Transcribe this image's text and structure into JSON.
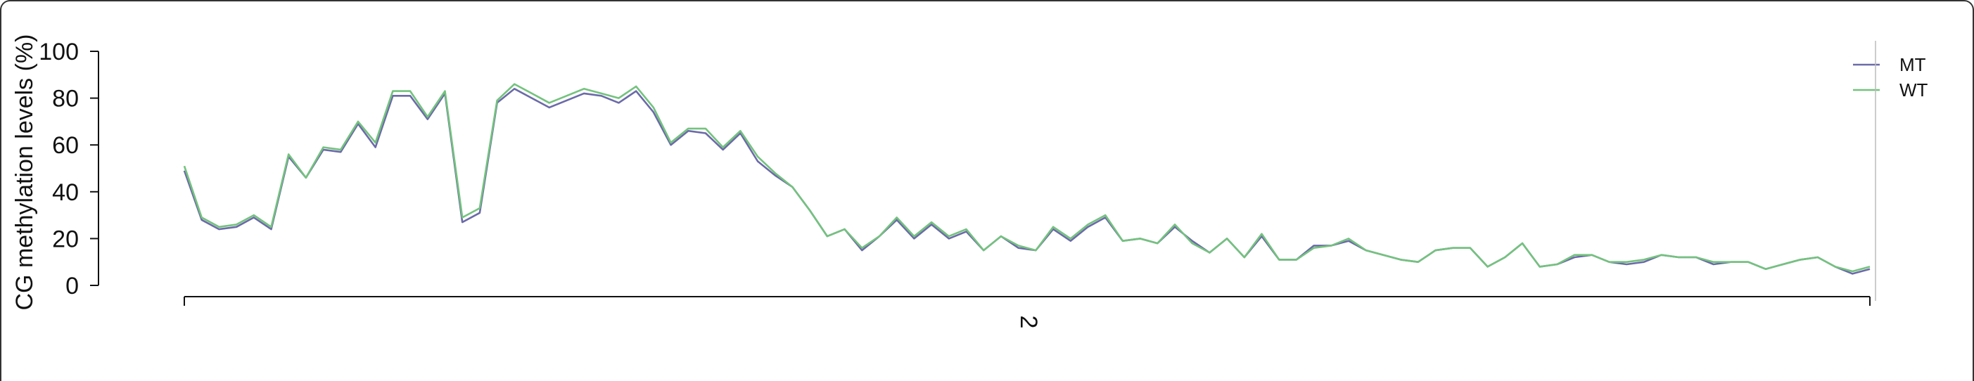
{
  "chart_data": {
    "type": "line",
    "ylabel": "CG methylation levels (%)",
    "xlabel": "",
    "x_tick_labels": [
      "2"
    ],
    "ylim": [
      0,
      100
    ],
    "yticks": [
      0,
      20,
      40,
      60,
      80,
      100
    ],
    "grid": false,
    "legend_position": "top-right",
    "series": [
      {
        "name": "MT",
        "color": "#6b6aa8",
        "values": [
          49,
          28,
          24,
          25,
          29,
          24,
          55,
          46,
          58,
          57,
          69,
          59,
          81,
          81,
          71,
          82,
          27,
          31,
          78,
          84,
          80,
          76,
          79,
          82,
          81,
          78,
          83,
          74,
          60,
          66,
          65,
          58,
          65,
          53,
          47,
          42,
          32,
          21,
          24,
          15,
          21,
          28,
          20,
          26,
          20,
          23,
          15,
          21,
          16,
          15,
          24,
          19,
          25,
          29,
          19,
          20,
          18,
          25,
          19,
          14,
          20,
          12,
          21,
          11,
          11,
          17,
          17,
          19,
          15,
          13,
          11,
          10,
          15,
          16,
          16,
          8,
          12,
          18,
          8,
          9,
          12,
          13,
          10,
          9,
          10,
          13,
          12,
          12,
          9,
          10,
          10,
          7,
          9,
          11,
          12,
          8,
          5,
          7
        ]
      },
      {
        "name": "WT",
        "color": "#74c27e",
        "values": [
          51,
          29,
          25,
          26,
          30,
          25,
          56,
          46,
          59,
          58,
          70,
          61,
          83,
          83,
          72,
          83,
          29,
          33,
          79,
          86,
          82,
          78,
          81,
          84,
          82,
          80,
          85,
          76,
          61,
          67,
          67,
          59,
          66,
          55,
          48,
          42,
          32,
          21,
          24,
          16,
          21,
          29,
          21,
          27,
          21,
          24,
          15,
          21,
          17,
          15,
          25,
          20,
          26,
          30,
          19,
          20,
          18,
          26,
          18,
          14,
          20,
          12,
          22,
          11,
          11,
          16,
          17,
          20,
          15,
          13,
          11,
          10,
          15,
          16,
          16,
          8,
          12,
          18,
          8,
          9,
          13,
          13,
          10,
          10,
          11,
          13,
          12,
          12,
          10,
          10,
          10,
          7,
          9,
          11,
          12,
          8,
          6,
          8
        ]
      }
    ]
  }
}
